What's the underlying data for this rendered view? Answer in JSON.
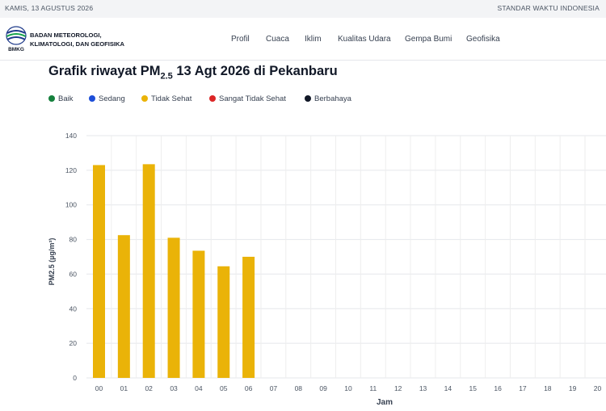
{
  "topbar": {
    "date": "KAMIS, 13 AGUSTUS 2026",
    "timezone": "STANDAR WAKTU INDONESIA"
  },
  "brand": {
    "logo_text": "BMKG",
    "line1": "BADAN METEOROLOGI,",
    "line2": "KLIMATOLOGI, DAN GEOFISIKA"
  },
  "nav": [
    {
      "label": "Profil"
    },
    {
      "label": "Cuaca"
    },
    {
      "label": "Iklim"
    },
    {
      "label": "Kualitas Udara"
    },
    {
      "label": "Gempa Bumi"
    },
    {
      "label": "Geofisika"
    }
  ],
  "page": {
    "title_prefix": "Grafik riwayat PM",
    "title_sub": "2.5",
    "title_suffix": " 13 Agt 2026 di Pekanbaru"
  },
  "legend": [
    {
      "label": "Baik",
      "color": "#15803d"
    },
    {
      "label": "Sedang",
      "color": "#1d4ed8"
    },
    {
      "label": "Tidak Sehat",
      "color": "#eab308"
    },
    {
      "label": "Sangat Tidak Sehat",
      "color": "#dc2626"
    },
    {
      "label": "Berbahaya",
      "color": "#111827"
    }
  ],
  "chart_data": {
    "type": "bar",
    "xlabel": "Jam",
    "ylabel": "PM2.5 (µg/m³)",
    "ylim": [
      0,
      140
    ],
    "yticks": [
      0,
      20,
      40,
      60,
      80,
      100,
      120,
      140
    ],
    "grid": true,
    "categories": [
      "00",
      "01",
      "02",
      "03",
      "04",
      "05",
      "06",
      "07",
      "08",
      "09",
      "10",
      "11",
      "12",
      "13",
      "14",
      "15",
      "16",
      "17",
      "18",
      "19",
      "20"
    ],
    "values": [
      123,
      82.5,
      123.5,
      81,
      73.5,
      64.5,
      70,
      null,
      null,
      null,
      null,
      null,
      null,
      null,
      null,
      null,
      null,
      null,
      null,
      null,
      null
    ],
    "bar_color": "#eab308"
  }
}
